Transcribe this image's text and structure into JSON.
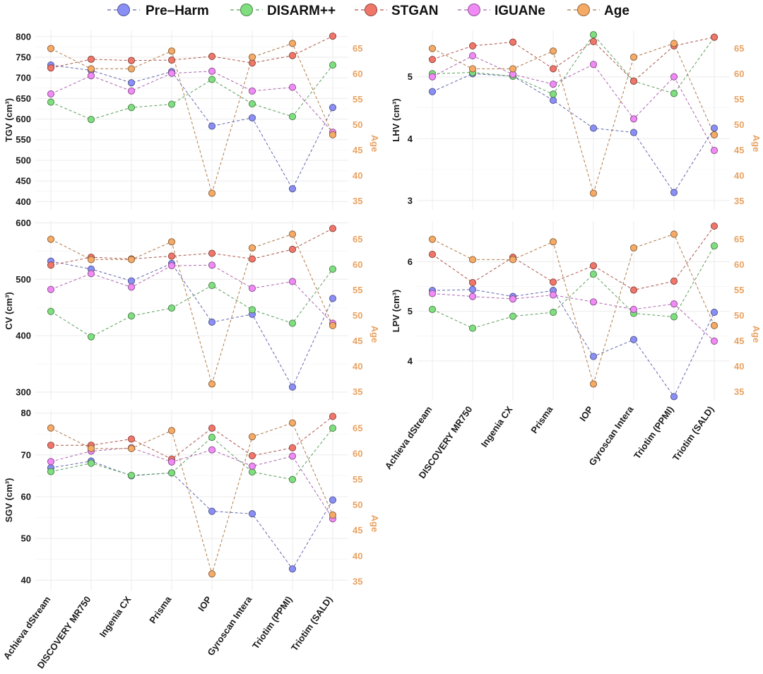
{
  "legend": {
    "items": [
      {
        "name": "Pre–Harm",
        "color": "#8a8ff5"
      },
      {
        "name": "DISARM++",
        "color": "#7fdf7f"
      },
      {
        "name": "STGAN",
        "color": "#f0766a"
      },
      {
        "name": "IGUANe",
        "color": "#f08af5"
      },
      {
        "name": "Age",
        "color": "#f5aa66"
      }
    ]
  },
  "chart_data": [
    {
      "type": "line",
      "id": "tgv",
      "ylabel": "TGV (cm³)",
      "y2label": "Age",
      "categories": [
        "Achieva dStream",
        "DISCOVERY MR750",
        "Ingenia CX",
        "Prisma",
        "IOP",
        "Gyroscan Intera",
        "Triotim (PPMI)",
        "Triotim (SALD)"
      ],
      "ylim": [
        380,
        815
      ],
      "yticks": [
        400,
        450,
        500,
        550,
        600,
        650,
        700,
        750,
        800
      ],
      "y2lim": [
        33.23,
        68.57
      ],
      "y2ticks": [
        35,
        40,
        45,
        50,
        55,
        60,
        65
      ],
      "series": [
        {
          "name": "Pre–Harm",
          "values": [
            731,
            718,
            688,
            715,
            583,
            603,
            431,
            628
          ]
        },
        {
          "name": "DISARM++",
          "values": [
            641,
            599,
            628,
            636,
            696,
            637,
            606,
            731
          ]
        },
        {
          "name": "STGAN",
          "values": [
            724,
            745,
            742,
            743,
            752,
            736,
            754,
            801
          ]
        },
        {
          "name": "IGUANe",
          "values": [
            661,
            705,
            668,
            711,
            716,
            668,
            677,
            568
          ]
        }
      ],
      "age": [
        65.0,
        61.0,
        61.0,
        64.5,
        36.5,
        63.3,
        66.0,
        48.0
      ],
      "x_labels_shown": false
    },
    {
      "type": "line",
      "id": "lhv",
      "ylabel": "LHV (cm³)",
      "y2label": "Age",
      "categories": [
        "Achieva dStream",
        "DISCOVERY MR750",
        "Ingenia CX",
        "Prisma",
        "IOP",
        "Gyroscan Intera",
        "Triotim (PPMI)",
        "Triotim (SALD)"
      ],
      "ylim": [
        2.85,
        5.75
      ],
      "yticks": [
        3,
        4,
        5
      ],
      "y2lim": [
        33.23,
        68.57
      ],
      "y2ticks": [
        35,
        40,
        45,
        50,
        55,
        60,
        65
      ],
      "series": [
        {
          "name": "Pre–Harm",
          "values": [
            4.76,
            5.05,
            5.01,
            4.62,
            4.17,
            4.1,
            3.13,
            4.17
          ]
        },
        {
          "name": "DISARM++",
          "values": [
            5.05,
            5.07,
            5.01,
            4.72,
            5.68,
            4.93,
            4.73,
            5.64
          ]
        },
        {
          "name": "STGAN",
          "values": [
            5.28,
            5.5,
            5.56,
            5.13,
            5.57,
            4.93,
            5.5,
            5.64
          ]
        },
        {
          "name": "IGUANe",
          "values": [
            5.0,
            5.34,
            5.04,
            4.88,
            5.2,
            4.32,
            5.0,
            3.81
          ]
        }
      ],
      "age": [
        65.0,
        61.0,
        61.0,
        64.5,
        36.5,
        63.3,
        66.0,
        48.0
      ],
      "x_labels_shown": false
    },
    {
      "type": "line",
      "id": "cv",
      "ylabel": "CV (cm³)",
      "y2label": "Age",
      "categories": [
        "Achieva dStream",
        "DISCOVERY MR750",
        "Ingenia CX",
        "Prisma",
        "IOP",
        "Gyroscan Intera",
        "Triotim (PPMI)",
        "Triotim (SALD)"
      ],
      "ylim": [
        285,
        603
      ],
      "yticks": [
        300,
        400,
        500,
        600
      ],
      "y2lim": [
        33.23,
        68.57
      ],
      "y2ticks": [
        35,
        40,
        45,
        50,
        55,
        60,
        65
      ],
      "series": [
        {
          "name": "Pre–Harm",
          "values": [
            532,
            518,
            497,
            528,
            424,
            438,
            309,
            466
          ]
        },
        {
          "name": "DISARM++",
          "values": [
            443,
            398,
            435,
            449,
            489,
            446,
            422,
            518
          ]
        },
        {
          "name": "STGAN",
          "values": [
            525,
            539,
            536,
            541,
            546,
            536,
            553,
            590
          ]
        },
        {
          "name": "IGUANe",
          "values": [
            482,
            510,
            486,
            524,
            525,
            484,
            496,
            422
          ]
        }
      ],
      "age": [
        65.0,
        61.0,
        61.0,
        64.5,
        36.5,
        63.3,
        66.0,
        48.0
      ],
      "x_labels_shown": false
    },
    {
      "type": "line",
      "id": "lpv",
      "ylabel": "LPV (cm³)",
      "y2label": "Age",
      "categories": [
        "Achieva dStream",
        "DISCOVERY MR750",
        "Ingenia CX",
        "Prisma",
        "IOP",
        "Gyroscan Intera",
        "Triotim (PPMI)",
        "Triotim (SALD)"
      ],
      "ylim": [
        3.2,
        6.82
      ],
      "yticks": [
        4,
        5,
        6
      ],
      "y2lim": [
        33.23,
        68.57
      ],
      "y2ticks": [
        35,
        40,
        45,
        50,
        55,
        60,
        65
      ],
      "series": [
        {
          "name": "Pre–Harm",
          "values": [
            5.42,
            5.44,
            5.3,
            5.42,
            4.09,
            4.43,
            3.28,
            4.98
          ]
        },
        {
          "name": "DISARM++",
          "values": [
            5.04,
            4.66,
            4.9,
            4.98,
            5.75,
            4.96,
            4.89,
            6.32
          ]
        },
        {
          "name": "STGAN",
          "values": [
            6.15,
            5.58,
            6.09,
            5.59,
            5.92,
            5.43,
            5.61,
            6.72
          ]
        },
        {
          "name": "IGUANe",
          "values": [
            5.36,
            5.3,
            5.25,
            5.33,
            5.19,
            5.04,
            5.15,
            4.4
          ]
        }
      ],
      "age": [
        65.0,
        61.0,
        61.0,
        64.5,
        36.5,
        63.3,
        66.0,
        48.0
      ],
      "x_labels_shown": true
    },
    {
      "type": "line",
      "id": "sgv",
      "ylabel": "SGV (cm³)",
      "y2label": "Age",
      "categories": [
        "Achieva dStream",
        "DISCOVERY MR750",
        "Ingenia CX",
        "Prisma",
        "IOP",
        "Gyroscan Intera",
        "Triotim (PPMI)",
        "Triotim (SALD)"
      ],
      "ylim": [
        37.5,
        80.8
      ],
      "yticks": [
        40,
        50,
        60,
        70,
        80
      ],
      "y2lim": [
        33.23,
        68.57
      ],
      "y2ticks": [
        35,
        40,
        45,
        50,
        55,
        60,
        65
      ],
      "series": [
        {
          "name": "Pre–Harm",
          "values": [
            66.9,
            68.5,
            65.0,
            65.7,
            56.5,
            55.9,
            42.7,
            59.2
          ]
        },
        {
          "name": "DISARM++",
          "values": [
            66.0,
            68.0,
            65.1,
            65.7,
            74.2,
            65.9,
            64.1,
            76.4
          ]
        },
        {
          "name": "STGAN",
          "values": [
            72.3,
            72.3,
            73.8,
            69.0,
            76.4,
            69.8,
            71.7,
            79.2
          ]
        },
        {
          "name": "IGUANe",
          "values": [
            68.4,
            70.9,
            71.7,
            68.3,
            71.2,
            67.3,
            69.7,
            54.7
          ]
        }
      ],
      "age": [
        65.0,
        61.0,
        61.0,
        64.5,
        36.5,
        63.3,
        66.0,
        48.0
      ],
      "x_labels_shown": true
    }
  ]
}
